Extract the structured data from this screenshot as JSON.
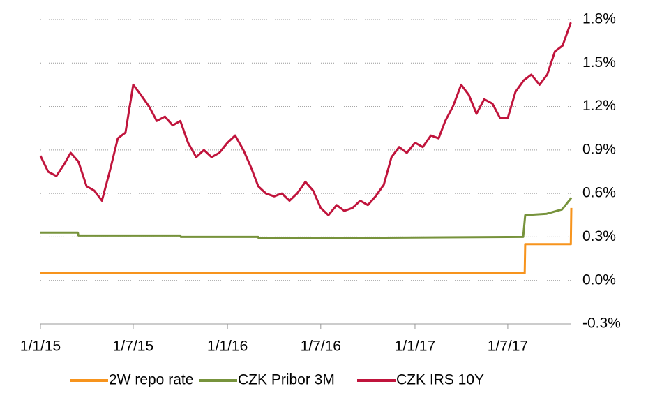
{
  "chart_data": {
    "type": "line",
    "xlim": [
      "2015-01-01",
      "2017-11-02"
    ],
    "xticks": [
      {
        "value": "2015-01-01",
        "label": "1/1/15"
      },
      {
        "value": "2015-07-01",
        "label": "1/7/15"
      },
      {
        "value": "2016-01-01",
        "label": "1/1/16"
      },
      {
        "value": "2016-07-01",
        "label": "1/7/16"
      },
      {
        "value": "2017-01-01",
        "label": "1/1/17"
      },
      {
        "value": "2017-07-01",
        "label": "1/7/17"
      }
    ],
    "ylim": [
      -0.3,
      1.8
    ],
    "yticks": [
      {
        "value": -0.3,
        "label": "-0.3%"
      },
      {
        "value": 0.0,
        "label": "0.0%"
      },
      {
        "value": 0.3,
        "label": "0.3%"
      },
      {
        "value": 0.6,
        "label": "0.6%"
      },
      {
        "value": 0.9,
        "label": "0.9%"
      },
      {
        "value": 1.2,
        "label": "1.2%"
      },
      {
        "value": 1.5,
        "label": "1.5%"
      },
      {
        "value": 1.8,
        "label": "1.8%"
      }
    ],
    "grid": true,
    "legend": "bottom",
    "series": [
      {
        "name": "2W repo rate",
        "color": "#f7941d",
        "x": [
          "2015-01-01",
          "2017-08-03",
          "2017-08-04",
          "2017-11-01",
          "2017-11-02"
        ],
        "values": [
          0.05,
          0.05,
          0.25,
          0.25,
          0.5
        ]
      },
      {
        "name": "CZK Pribor 3M",
        "color": "#77933c",
        "x": [
          "2015-01-01",
          "2015-03-15",
          "2015-03-16",
          "2015-10-01",
          "2015-10-02",
          "2016-03-01",
          "2016-03-02",
          "2017-07-31",
          "2017-08-04",
          "2017-09-15",
          "2017-10-15",
          "2017-11-02"
        ],
        "values": [
          0.33,
          0.33,
          0.31,
          0.31,
          0.3,
          0.3,
          0.29,
          0.3,
          0.45,
          0.46,
          0.49,
          0.57
        ]
      },
      {
        "name": "CZK IRS 10Y",
        "color": "#c0143c",
        "x": [
          "2015-01-01",
          "2015-01-16",
          "2015-02-01",
          "2015-02-16",
          "2015-03-01",
          "2015-03-16",
          "2015-04-01",
          "2015-04-16",
          "2015-05-01",
          "2015-05-16",
          "2015-06-01",
          "2015-06-16",
          "2015-07-01",
          "2015-07-16",
          "2015-08-01",
          "2015-08-16",
          "2015-09-01",
          "2015-09-16",
          "2015-10-01",
          "2015-10-16",
          "2015-11-01",
          "2015-11-16",
          "2015-12-01",
          "2015-12-16",
          "2016-01-01",
          "2016-01-16",
          "2016-02-01",
          "2016-02-16",
          "2016-03-01",
          "2016-03-16",
          "2016-04-01",
          "2016-04-16",
          "2016-05-01",
          "2016-05-16",
          "2016-06-01",
          "2016-06-16",
          "2016-07-01",
          "2016-07-16",
          "2016-08-01",
          "2016-08-16",
          "2016-09-01",
          "2016-09-16",
          "2016-10-01",
          "2016-10-16",
          "2016-11-01",
          "2016-11-16",
          "2016-12-01",
          "2016-12-16",
          "2017-01-01",
          "2017-01-16",
          "2017-02-01",
          "2017-02-16",
          "2017-03-01",
          "2017-03-16",
          "2017-04-01",
          "2017-04-16",
          "2017-05-01",
          "2017-05-16",
          "2017-06-01",
          "2017-06-16",
          "2017-07-01",
          "2017-07-16",
          "2017-08-01",
          "2017-08-16",
          "2017-09-01",
          "2017-09-16",
          "2017-10-01",
          "2017-10-16",
          "2017-11-01"
        ],
        "values": [
          0.86,
          0.75,
          0.72,
          0.8,
          0.88,
          0.82,
          0.65,
          0.62,
          0.55,
          0.75,
          0.98,
          1.02,
          1.35,
          1.28,
          1.2,
          1.1,
          1.13,
          1.07,
          1.1,
          0.95,
          0.85,
          0.9,
          0.85,
          0.88,
          0.95,
          1.0,
          0.9,
          0.78,
          0.65,
          0.6,
          0.58,
          0.6,
          0.55,
          0.6,
          0.68,
          0.62,
          0.5,
          0.45,
          0.52,
          0.48,
          0.5,
          0.55,
          0.52,
          0.58,
          0.66,
          0.85,
          0.92,
          0.88,
          0.95,
          0.92,
          1.0,
          0.98,
          1.1,
          1.2,
          1.35,
          1.28,
          1.15,
          1.25,
          1.22,
          1.12,
          1.12,
          1.3,
          1.38,
          1.42,
          1.35,
          1.42,
          1.58,
          1.62,
          1.78
        ]
      }
    ]
  }
}
